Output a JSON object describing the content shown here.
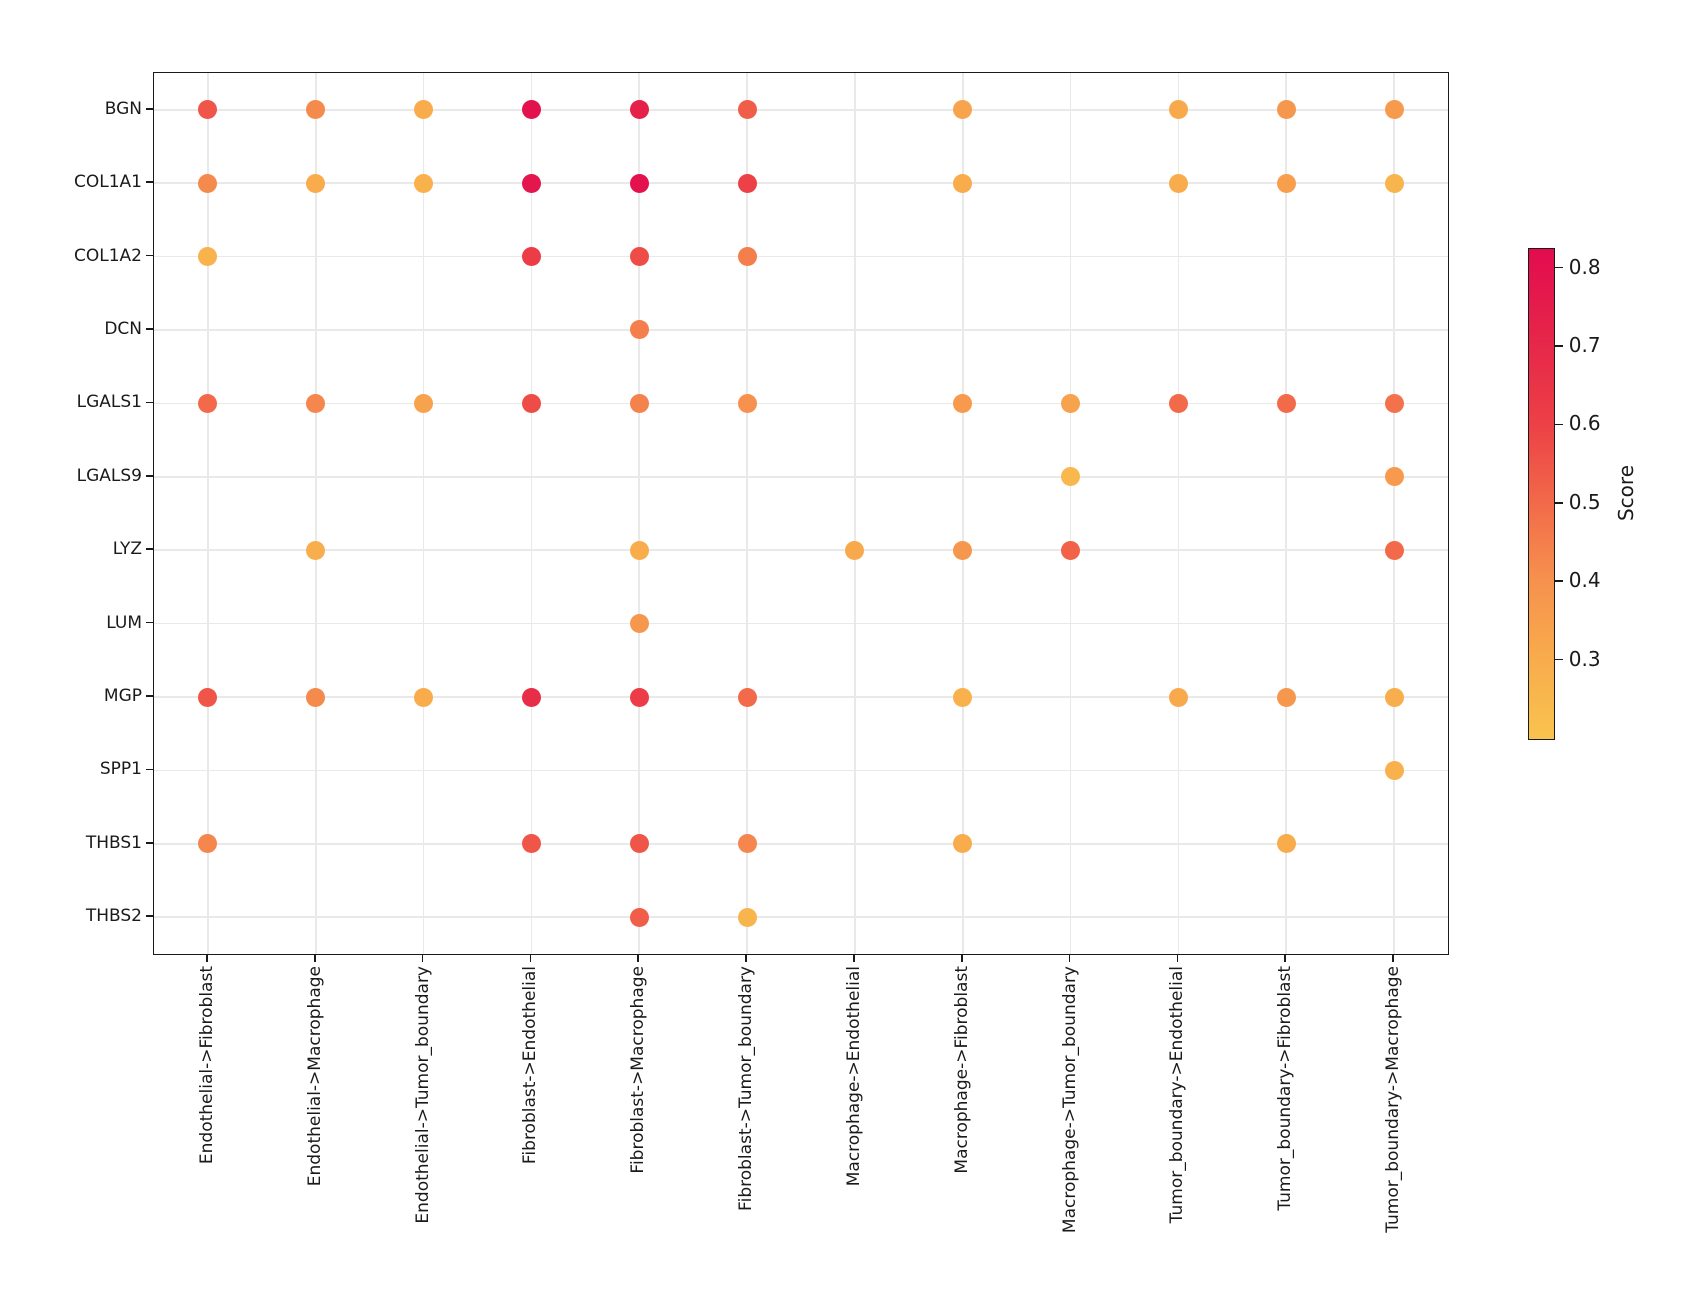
{
  "chart_data": {
    "type": "scatter",
    "title": "",
    "xlabel": "",
    "ylabel": "",
    "grid": true,
    "x_tick_rotation": 90,
    "x_categories": [
      "Endothelial->Fibroblast",
      "Endothelial->Macrophage",
      "Endothelial->Tumor_boundary",
      "Fibroblast->Endothelial",
      "Fibroblast->Macrophage",
      "Fibroblast->Tumor_boundary",
      "Macrophage->Endothelial",
      "Macrophage->Fibroblast",
      "Macrophage->Tumor_boundary",
      "Tumor_boundary->Endothelial",
      "Tumor_boundary->Fibroblast",
      "Tumor_boundary->Macrophage"
    ],
    "y_categories": [
      "BGN",
      "COL1A1",
      "COL1A2",
      "DCN",
      "LGALS1",
      "LGALS9",
      "LYZ",
      "LUM",
      "MGP",
      "SPP1",
      "THBS1",
      "THBS2"
    ],
    "scores": [
      [
        0.55,
        0.42,
        0.3,
        0.8,
        0.73,
        0.53,
        null,
        0.33,
        null,
        0.31,
        0.38,
        0.37
      ],
      [
        0.42,
        0.3,
        0.28,
        0.78,
        0.8,
        0.6,
        null,
        0.3,
        null,
        0.3,
        0.35,
        0.26
      ],
      [
        0.27,
        null,
        null,
        0.62,
        0.57,
        0.45,
        null,
        null,
        null,
        null,
        null,
        null
      ],
      [
        null,
        null,
        null,
        null,
        0.45,
        null,
        null,
        null,
        null,
        null,
        null,
        null
      ],
      [
        0.5,
        0.43,
        0.34,
        0.57,
        0.44,
        0.4,
        null,
        0.37,
        0.34,
        0.5,
        0.5,
        0.48
      ],
      [
        null,
        null,
        null,
        null,
        null,
        null,
        null,
        null,
        0.25,
        null,
        null,
        0.37
      ],
      [
        null,
        0.29,
        null,
        null,
        0.3,
        null,
        0.31,
        0.38,
        0.52,
        null,
        null,
        0.5
      ],
      [
        null,
        null,
        null,
        null,
        0.38,
        null,
        null,
        null,
        null,
        null,
        null,
        null
      ],
      [
        0.55,
        0.42,
        0.3,
        0.68,
        0.62,
        0.5,
        null,
        0.28,
        null,
        0.31,
        0.38,
        0.29
      ],
      [
        null,
        null,
        null,
        null,
        null,
        null,
        null,
        null,
        null,
        null,
        null,
        0.28
      ],
      [
        0.43,
        null,
        null,
        0.55,
        0.55,
        0.43,
        null,
        0.3,
        null,
        null,
        0.3,
        null
      ],
      [
        null,
        null,
        null,
        null,
        0.53,
        0.26,
        null,
        null,
        null,
        null,
        null,
        null
      ]
    ],
    "colorbar": {
      "label": "Score",
      "tick_values": [
        0.8,
        0.7,
        0.6,
        0.5,
        0.4,
        0.3
      ],
      "vmin": 0.2,
      "vmax": 0.825,
      "colormap_stops": [
        [
          0.2,
          "#F9C34E"
        ],
        [
          0.3,
          "#F8AC4C"
        ],
        [
          0.4,
          "#F6924E"
        ],
        [
          0.5,
          "#F26A4A"
        ],
        [
          0.6,
          "#EC4146"
        ],
        [
          0.7,
          "#E62849"
        ],
        [
          0.825,
          "#E20C4F"
        ]
      ],
      "position": "right"
    }
  }
}
